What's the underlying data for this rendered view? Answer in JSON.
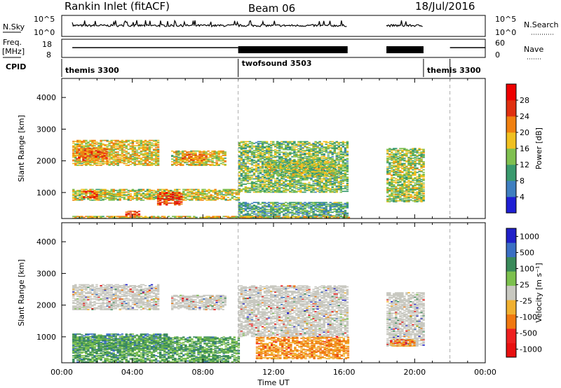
{
  "header": {
    "station": "Rankin Inlet (fitACF)",
    "beam": "Beam 06",
    "date": "18/Jul/2016"
  },
  "summary_panels": {
    "nsky_label": "N.Sky",
    "nsearch_label": "N.Search",
    "freq_label_1": "Freq.",
    "freq_label_2": "[MHz]",
    "nave_label": "Nave",
    "cpid_label": "CPID",
    "nsky_ticks": [
      "10^5",
      "10^0"
    ],
    "nsearch_ticks": [
      "10^5",
      "10^0"
    ],
    "freq_ticks": [
      "18",
      "8"
    ],
    "nave_ticks": [
      "60",
      "0"
    ]
  },
  "cpid_segments": [
    {
      "name": "themis 3300",
      "start_h": 0,
      "end_h": 10
    },
    {
      "name": "twofsound 3503",
      "start_h": 10,
      "end_h": 20.5
    },
    {
      "name": "themis 3300",
      "start_h": 20.5,
      "end_h": 22
    }
  ],
  "colors": {
    "power": [
      "#1f1fd4",
      "#3f7fc0",
      "#3a9a6e",
      "#7fc050",
      "#f0c020",
      "#f08010",
      "#e03010",
      "#ee0000"
    ],
    "velocity": [
      "#2020c8",
      "#3b6fc4",
      "#3a8a5a",
      "#7cc04e",
      "#c8c8c0",
      "#f0b030",
      "#f07810",
      "#ee2020",
      "#e81010"
    ]
  },
  "chart_data": [
    {
      "type": "heatmap",
      "panel": "power",
      "ylabel": "Slant Range [km]",
      "xlabel": "",
      "x_ticks": [
        "00:00",
        "04:00",
        "08:00",
        "12:00",
        "16:00",
        "20:00",
        "00:00"
      ],
      "y_ticks": [
        "1000",
        "2000",
        "3000",
        "4000"
      ],
      "xlim_h": [
        0,
        24
      ],
      "ylim_km": [
        180,
        4600
      ],
      "colorbar_label": "Power [dB]",
      "colorbar_ticks": [
        "4",
        "8",
        "12",
        "16",
        "20",
        "24",
        "28"
      ],
      "colorbar_range": [
        0,
        30
      ],
      "data_gaps_h": [
        [
          16.2,
          18.4
        ],
        [
          20.5,
          24
        ]
      ],
      "blobs": [
        {
          "t": [
            0.6,
            5.5
          ],
          "r": [
            1850,
            2650
          ],
          "level": 0.55
        },
        {
          "t": [
            0.8,
            2.6
          ],
          "r": [
            2000,
            2400
          ],
          "level": 0.75
        },
        {
          "t": [
            6.2,
            9.2
          ],
          "r": [
            1850,
            2300
          ],
          "level": 0.55
        },
        {
          "t": [
            6.8,
            8.2
          ],
          "r": [
            2000,
            2200
          ],
          "level": 0.72
        },
        {
          "t": [
            0.6,
            10.0
          ],
          "r": [
            750,
            1100
          ],
          "level": 0.5
        },
        {
          "t": [
            1.2,
            2.0
          ],
          "r": [
            800,
            1050
          ],
          "level": 0.82
        },
        {
          "t": [
            5.4,
            6.8
          ],
          "r": [
            600,
            1000
          ],
          "level": 0.85
        },
        {
          "t": [
            3.6,
            4.4
          ],
          "r": [
            230,
            420
          ],
          "level": 0.85
        },
        {
          "t": [
            10.0,
            16.2
          ],
          "r": [
            1000,
            2600
          ],
          "level": 0.4
        },
        {
          "t": [
            11.5,
            15.5
          ],
          "r": [
            1500,
            2000
          ],
          "level": 0.45
        },
        {
          "t": [
            10.0,
            16.2
          ],
          "r": [
            200,
            700
          ],
          "level": 0.3
        },
        {
          "t": [
            18.4,
            20.5
          ],
          "r": [
            700,
            2400
          ],
          "level": 0.45
        },
        {
          "t": [
            0.6,
            16.2
          ],
          "r": [
            180,
            260
          ],
          "level": 0.55
        }
      ]
    },
    {
      "type": "heatmap",
      "panel": "velocity",
      "ylabel": "Slant Range [km]",
      "xlabel": "Time UT",
      "x_ticks": [
        "00:00",
        "04:00",
        "08:00",
        "12:00",
        "16:00",
        "20:00",
        "00:00"
      ],
      "y_ticks": [
        "1000",
        "2000",
        "3000",
        "4000"
      ],
      "xlim_h": [
        0,
        24
      ],
      "ylim_km": [
        180,
        4600
      ],
      "colorbar_label": "Velocity [m s⁻¹]",
      "colorbar_ticks": [
        "1000",
        "500",
        "100",
        "25",
        "-25",
        "-100",
        "-500",
        "-1000"
      ],
      "data_gaps_h": [
        [
          16.2,
          18.4
        ],
        [
          20.5,
          24
        ]
      ],
      "blobs": [
        {
          "t": [
            0.6,
            5.5
          ],
          "r": [
            1850,
            2650
          ],
          "level": 0.5
        },
        {
          "t": [
            6.2,
            9.2
          ],
          "r": [
            1850,
            2300
          ],
          "level": 0.5
        },
        {
          "t": [
            10.0,
            16.2
          ],
          "r": [
            1000,
            2600
          ],
          "level": 0.5
        },
        {
          "t": [
            18.4,
            20.5
          ],
          "r": [
            700,
            2400
          ],
          "level": 0.5
        },
        {
          "t": [
            0.6,
            6.0
          ],
          "r": [
            600,
            1100
          ],
          "level": 0.22
        },
        {
          "t": [
            0.6,
            10.0
          ],
          "r": [
            200,
            1000
          ],
          "level": 0.3
        },
        {
          "t": [
            11.0,
            16.2
          ],
          "r": [
            300,
            1000
          ],
          "level": 0.7
        },
        {
          "t": [
            18.6,
            20.0
          ],
          "r": [
            700,
            900
          ],
          "level": 0.75
        }
      ]
    }
  ]
}
